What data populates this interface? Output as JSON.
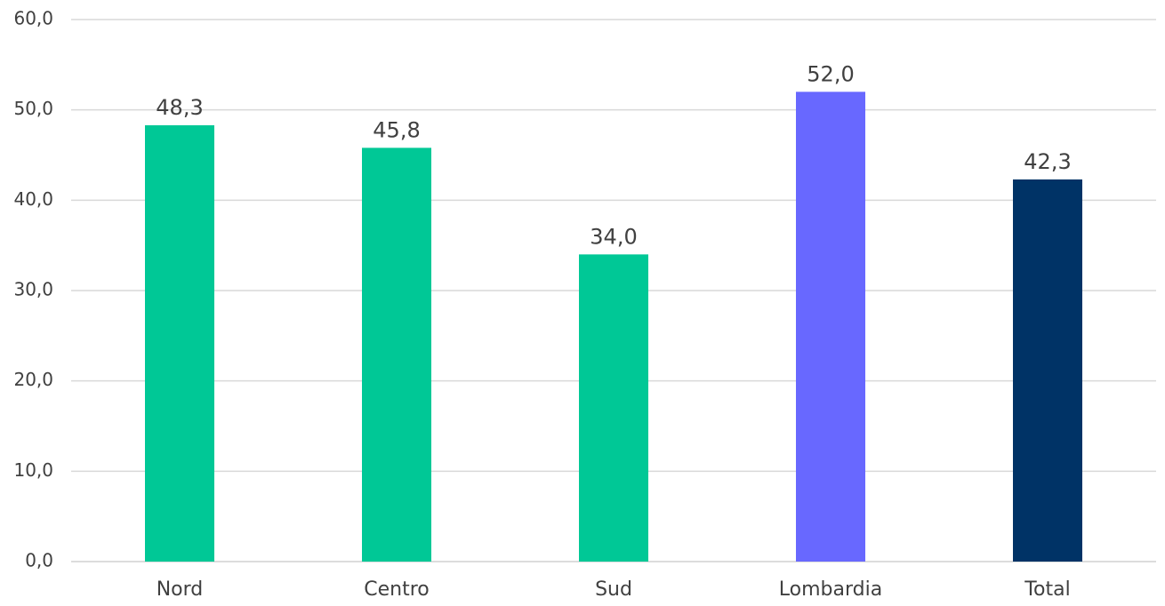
{
  "chart_data": {
    "type": "bar",
    "title": "",
    "xlabel": "",
    "ylabel": "",
    "categories": [
      "Nord",
      "Centro",
      "Sud",
      "Lombardia",
      "Total"
    ],
    "values": [
      48.3,
      45.8,
      34.0,
      52.0,
      42.3
    ],
    "value_labels": [
      "48,3",
      "45,8",
      "34,0",
      "52,0",
      "42,3"
    ],
    "bar_colors": [
      "#00c896",
      "#00c896",
      "#00c896",
      "#6868ff",
      "#003366"
    ],
    "ylim": [
      0,
      60
    ],
    "yticks": [
      0,
      10,
      20,
      30,
      40,
      50,
      60
    ],
    "ytick_labels": [
      "0,0",
      "10,0",
      "20,0",
      "30,0",
      "40,0",
      "50,0",
      "60,0"
    ],
    "grid": true,
    "legend": "none"
  }
}
